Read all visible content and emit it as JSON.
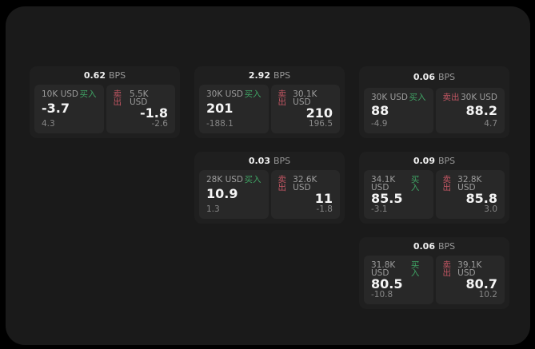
{
  "unit_label": "BPS",
  "buy_label": "买入",
  "sell_label": "卖出",
  "colors": {
    "backdrop": "#000000",
    "surface": "#1a1a1a",
    "card": "#1f1f1f",
    "panel": "#282828",
    "buy_accent": "#3fa364",
    "sell_accent": "#c25663"
  },
  "cards": [
    {
      "row": 1,
      "col": 1,
      "bps": "0.62",
      "buy": {
        "size": "10K USD",
        "value": "-3.7",
        "sub": "4.3"
      },
      "sell": {
        "size": "5.5K USD",
        "value": "-1.8",
        "sub": "-2.6"
      }
    },
    {
      "row": 1,
      "col": 2,
      "bps": "2.92",
      "buy": {
        "size": "30K USD",
        "value": "201",
        "sub": "-188.1"
      },
      "sell": {
        "size": "30.1K USD",
        "value": "210",
        "sub": "196.5"
      }
    },
    {
      "row": 1,
      "col": 3,
      "bps": "0.06",
      "buy": {
        "size": "30K USD",
        "value": "88",
        "sub": "-4.9"
      },
      "sell": {
        "size": "30K USD",
        "value": "88.2",
        "sub": "4.7"
      }
    },
    {
      "row": 2,
      "col": 2,
      "bps": "0.03",
      "buy": {
        "size": "28K USD",
        "value": "10.9",
        "sub": "1.3"
      },
      "sell": {
        "size": "32.6K USD",
        "value": "11",
        "sub": "-1.8"
      }
    },
    {
      "row": 2,
      "col": 3,
      "bps": "0.09",
      "buy": {
        "size": "34.1K USD",
        "value": "85.5",
        "sub": "-3.1"
      },
      "sell": {
        "size": "32.8K USD",
        "value": "85.8",
        "sub": "3.0"
      }
    },
    {
      "row": 3,
      "col": 3,
      "bps": "0.06",
      "buy": {
        "size": "31.8K USD",
        "value": "80.5",
        "sub": "-10.8"
      },
      "sell": {
        "size": "39.1K USD",
        "value": "80.7",
        "sub": "10.2"
      }
    }
  ]
}
